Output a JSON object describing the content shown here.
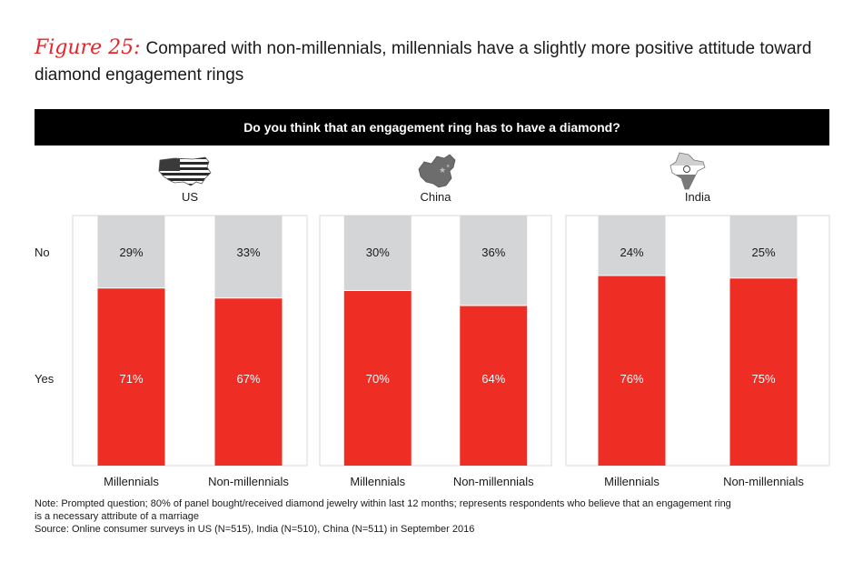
{
  "figure_label": "Figure 25:",
  "title_text": "Compared with non-millennials, millennials have a slightly more positive attitude toward diamond engagement rings",
  "question": "Do you think that an engagement ring has to have a diamond?",
  "row_labels": {
    "no": "No",
    "yes": "Yes"
  },
  "colors": {
    "yes": "#ee2d24",
    "no": "#d4d5d7",
    "accent": "#e8232a",
    "question_bg": "#000000"
  },
  "chart_data": [
    {
      "type": "bar",
      "stacked": true,
      "title": "US",
      "icon": "us-map-flag-icon",
      "categories": [
        "Millennials",
        "Non-millennials"
      ],
      "series": [
        {
          "name": "Yes",
          "values": [
            71,
            67
          ],
          "labels": [
            "71%",
            "67%"
          ]
        },
        {
          "name": "No",
          "values": [
            29,
            33
          ],
          "labels": [
            "29%",
            "33%"
          ]
        }
      ],
      "ylim": [
        0,
        100
      ]
    },
    {
      "type": "bar",
      "stacked": true,
      "title": "China",
      "icon": "china-map-flag-icon",
      "categories": [
        "Millennials",
        "Non-millennials"
      ],
      "series": [
        {
          "name": "Yes",
          "values": [
            70,
            64
          ],
          "labels": [
            "70%",
            "64%"
          ]
        },
        {
          "name": "No",
          "values": [
            30,
            36
          ],
          "labels": [
            "30%",
            "36%"
          ]
        }
      ],
      "ylim": [
        0,
        100
      ]
    },
    {
      "type": "bar",
      "stacked": true,
      "title": "India",
      "icon": "india-map-flag-icon",
      "categories": [
        "Millennials",
        "Non-millennials"
      ],
      "series": [
        {
          "name": "Yes",
          "values": [
            76,
            75
          ],
          "labels": [
            "76%",
            "75%"
          ]
        },
        {
          "name": "No",
          "values": [
            24,
            25
          ],
          "labels": [
            "24%",
            "25%"
          ]
        }
      ],
      "ylim": [
        0,
        100
      ]
    }
  ],
  "notes": {
    "line1": "Note: Prompted question; 80% of panel bought/received diamond jewelry within last 12 months; represents respondents who believe that an engagement ring",
    "line2": "is a necessary attribute of a marriage",
    "source": "Source: Online consumer surveys in US (N=515), India (N=510), China (N=511) in September 2016"
  }
}
